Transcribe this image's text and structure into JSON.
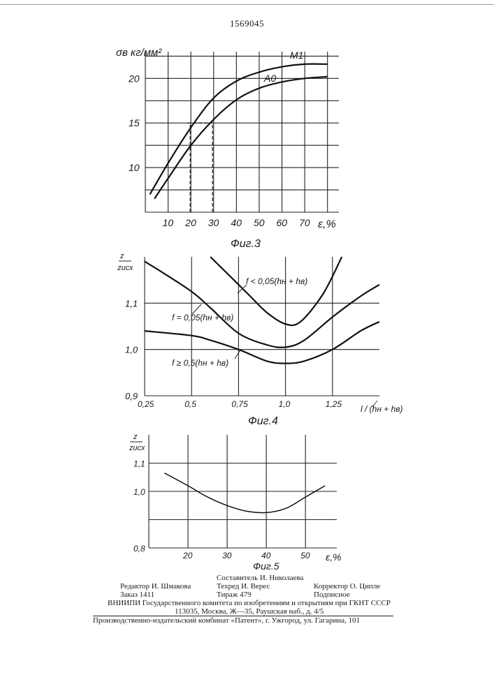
{
  "header": {
    "patent_number": "1569045"
  },
  "chart_data": [
    {
      "type": "line",
      "caption": "Фиг.3",
      "xlabel": "ε,%",
      "ylabel": "σв кг/мм²",
      "xlim": [
        0,
        85
      ],
      "ylim": [
        5,
        23
      ],
      "x_ticks": [
        10,
        20,
        30,
        40,
        50,
        60,
        70
      ],
      "y_ticks": [
        10,
        15,
        20
      ],
      "grid": true,
      "series": [
        {
          "name": "M1",
          "x": [
            2,
            10,
            20,
            30,
            40,
            50,
            60,
            70,
            80
          ],
          "y": [
            7.0,
            10.5,
            14.5,
            17.8,
            19.7,
            20.7,
            21.3,
            21.6,
            21.6
          ]
        },
        {
          "name": "A0",
          "x": [
            4,
            10,
            20,
            30,
            40,
            50,
            60,
            70,
            80
          ],
          "y": [
            6.5,
            8.8,
            12.5,
            15.4,
            17.6,
            18.9,
            19.6,
            20.0,
            20.2
          ]
        }
      ],
      "annotations": [
        {
          "label": "dashed",
          "x": 19.7,
          "y_from": 5,
          "y_to": 15
        },
        {
          "label": "dashed",
          "x": 29.5,
          "y_from": 5,
          "y_to": 15
        }
      ]
    },
    {
      "type": "line",
      "caption": "Фиг.4",
      "xlabel": "l / (hн + hв)",
      "ylabel": "z / zисх",
      "xlim": [
        0.25,
        1.5
      ],
      "ylim": [
        0.9,
        1.2
      ],
      "x_ticks": [
        "0,25",
        "0,5",
        "0,75",
        "1,0",
        "1,25"
      ],
      "y_ticks": [
        "0,9",
        "1,0",
        "1,1"
      ],
      "grid": true,
      "series": [
        {
          "name": "f < 0,05(hн + hв)",
          "x": [
            0.6,
            0.7,
            0.8,
            0.9,
            1.0,
            1.08,
            1.2,
            1.3
          ],
          "y": [
            1.2,
            1.16,
            1.12,
            1.08,
            1.055,
            1.06,
            1.12,
            1.2
          ]
        },
        {
          "name": "f = 0,05(hн + hв)",
          "x": [
            0.25,
            0.35,
            0.5,
            0.6,
            0.75,
            0.9,
            1.0,
            1.1,
            1.25,
            1.4,
            1.5
          ],
          "y": [
            1.19,
            1.165,
            1.125,
            1.09,
            1.035,
            1.01,
            1.005,
            1.02,
            1.07,
            1.115,
            1.14
          ]
        },
        {
          "name": "f ≥ 0,5(hн + hв)",
          "x": [
            0.25,
            0.5,
            0.6,
            0.75,
            0.9,
            1.0,
            1.1,
            1.25,
            1.4,
            1.5
          ],
          "y": [
            1.04,
            1.03,
            1.02,
            1.0,
            0.975,
            0.97,
            0.975,
            1.0,
            1.04,
            1.06
          ]
        }
      ]
    },
    {
      "type": "line",
      "caption": "Фиг.5",
      "xlabel": "ε,%",
      "ylabel": "z / zисх",
      "xlim": [
        10,
        58
      ],
      "ylim": [
        0.8,
        1.2
      ],
      "x_ticks": [
        20,
        30,
        40,
        50
      ],
      "y_ticks": [
        "0,8",
        "1,0",
        "1,1"
      ],
      "grid": true,
      "series": [
        {
          "name": "",
          "x": [
            14,
            20,
            25,
            30,
            35,
            40,
            45,
            50,
            55
          ],
          "y": [
            1.065,
            1.02,
            0.98,
            0.95,
            0.93,
            0.925,
            0.94,
            0.98,
            1.02
          ]
        }
      ]
    }
  ],
  "footer": {
    "compiler": "Составитель И. Николаева",
    "editor": "Редактор И. Шмакова",
    "techred": "Техред И. Верес",
    "corrector": "Корректор О. Ципле",
    "order": "Заказ 1411",
    "circulation": "Тираж 479",
    "signed": "Подписное",
    "org": "ВНИИПИ Государственного комитета по изобретениям и открытиям при ГКНТ СССР",
    "address": "113035, Москва, Ж—35, Раушская наб., д. 4/5",
    "plant": "Производственно-издательский комбинат «Патент», г. Ужгород, ул. Гагарина, 101"
  }
}
